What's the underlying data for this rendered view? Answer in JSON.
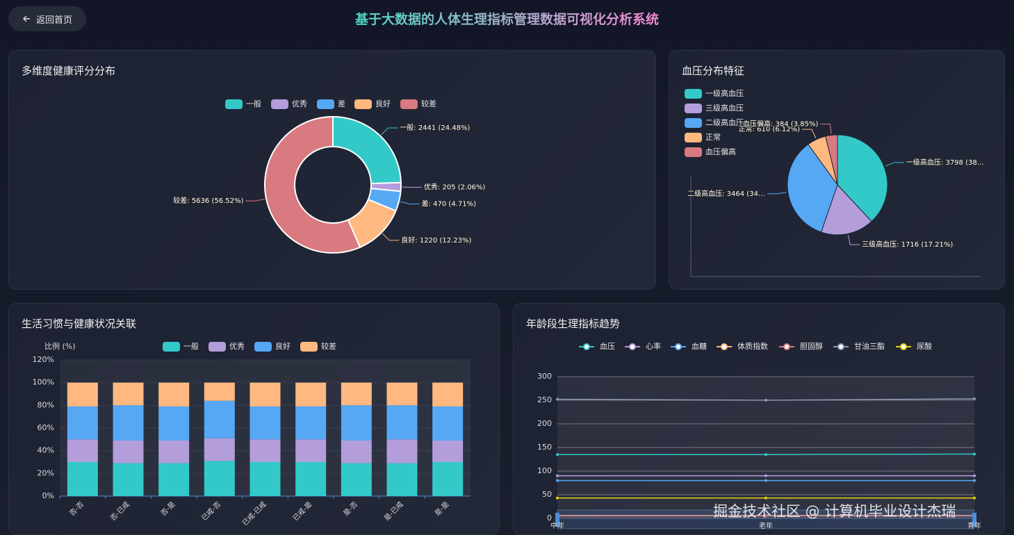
{
  "header": {
    "back": "返回首页",
    "title": "基于大数据的人体生理指标管理数据可视化分析系统",
    "watermark": "掘金技术社区 @ 计算机毕业设计杰瑞"
  },
  "chart_data": [
    {
      "type": "pie",
      "title": "多维度健康评分分布",
      "donut": true,
      "categories": [
        "一般",
        "优秀",
        "差",
        "良好",
        "较差"
      ],
      "values": [
        2441,
        205,
        470,
        1220,
        5636
      ],
      "value_labels": [
        "一般: 2441 (24.48%)",
        "优秀: 205 (2.06%)",
        "差: 470 (4.71%)",
        "良好: 1220 (12.23%)",
        "较差: 5636 (56.52%)"
      ],
      "colors": [
        "#33c9c9",
        "#b39ddb",
        "#56a8f5",
        "#ffb980",
        "#d87a80"
      ],
      "legend": "top"
    },
    {
      "type": "pie",
      "title": "血压分布特征",
      "donut": false,
      "categories": [
        "一级高血压",
        "三级高血压",
        "二级高血压",
        "正常",
        "血压偏高"
      ],
      "values": [
        3798,
        1716,
        3464,
        610,
        384
      ],
      "value_labels": [
        "一级高血压: 3798 (38…",
        "三级高血压: 1716 (17.21%)",
        "二级高血压: 3464 (34…",
        "正常: 610 (6.12%)",
        "血压偏高: 384 (3.85%)"
      ],
      "colors": [
        "#33c9c9",
        "#b39ddb",
        "#56a8f5",
        "#ffb980",
        "#d87a80"
      ],
      "legend": "left"
    },
    {
      "type": "bar",
      "title": "生活习惯与健康状况关联",
      "stacked": true,
      "y_label": "比例 (%)",
      "categories": [
        "否-否",
        "否-已戒",
        "否-是",
        "已戒-否",
        "已戒-已戒",
        "已戒-是",
        "是-否",
        "是-已戒",
        "是-是"
      ],
      "series": [
        {
          "name": "一般",
          "color": "#33c9c9",
          "values": [
            30,
            29,
            29,
            31,
            30,
            30,
            29,
            29,
            30
          ]
        },
        {
          "name": "优秀",
          "color": "#b39ddb",
          "values": [
            20,
            20,
            20,
            20,
            20,
            20,
            20,
            21,
            19
          ]
        },
        {
          "name": "良好",
          "color": "#56a8f5",
          "values": [
            29,
            31,
            30,
            33,
            29,
            29,
            31,
            30,
            30
          ]
        },
        {
          "name": "较差",
          "color": "#ffb980",
          "values": [
            21,
            20,
            21,
            16,
            21,
            21,
            20,
            20,
            21
          ]
        }
      ],
      "ylim": [
        0,
        120
      ],
      "yticks": [
        {
          "value": 0,
          "label": "0%"
        },
        {
          "value": 20,
          "label": "20%"
        },
        {
          "value": 40,
          "label": "40%"
        },
        {
          "value": 60,
          "label": "60%"
        },
        {
          "value": 80,
          "label": "80%"
        },
        {
          "value": 100,
          "label": "100%"
        },
        {
          "value": 120,
          "label": "120%"
        }
      ],
      "grid": true
    },
    {
      "type": "line",
      "title": "年龄段生理指标趋势",
      "categories": [
        "中年",
        "老年",
        "青年"
      ],
      "series": [
        {
          "name": "血压",
          "color": "#33c9c9",
          "values": [
            135,
            135,
            136
          ]
        },
        {
          "name": "心率",
          "color": "#b39ddb",
          "values": [
            90,
            90,
            90
          ]
        },
        {
          "name": "血糖",
          "color": "#56a8f5",
          "values": [
            80,
            80,
            80
          ]
        },
        {
          "name": "体质指数",
          "color": "#ffb980",
          "values": [
            6,
            6,
            6
          ]
        },
        {
          "name": "胆固醇",
          "color": "#d87a80",
          "values": [
            5,
            5,
            5
          ]
        },
        {
          "name": "甘油三酯",
          "color": "#8d98b3",
          "values": [
            252,
            250,
            253
          ]
        },
        {
          "name": "尿酸",
          "color": "#e5cf0d",
          "values": [
            43,
            43,
            43
          ]
        }
      ],
      "ylim": [
        0,
        300
      ],
      "yticks": [
        0,
        50,
        100,
        150,
        200,
        250,
        300
      ],
      "grid": true
    }
  ]
}
